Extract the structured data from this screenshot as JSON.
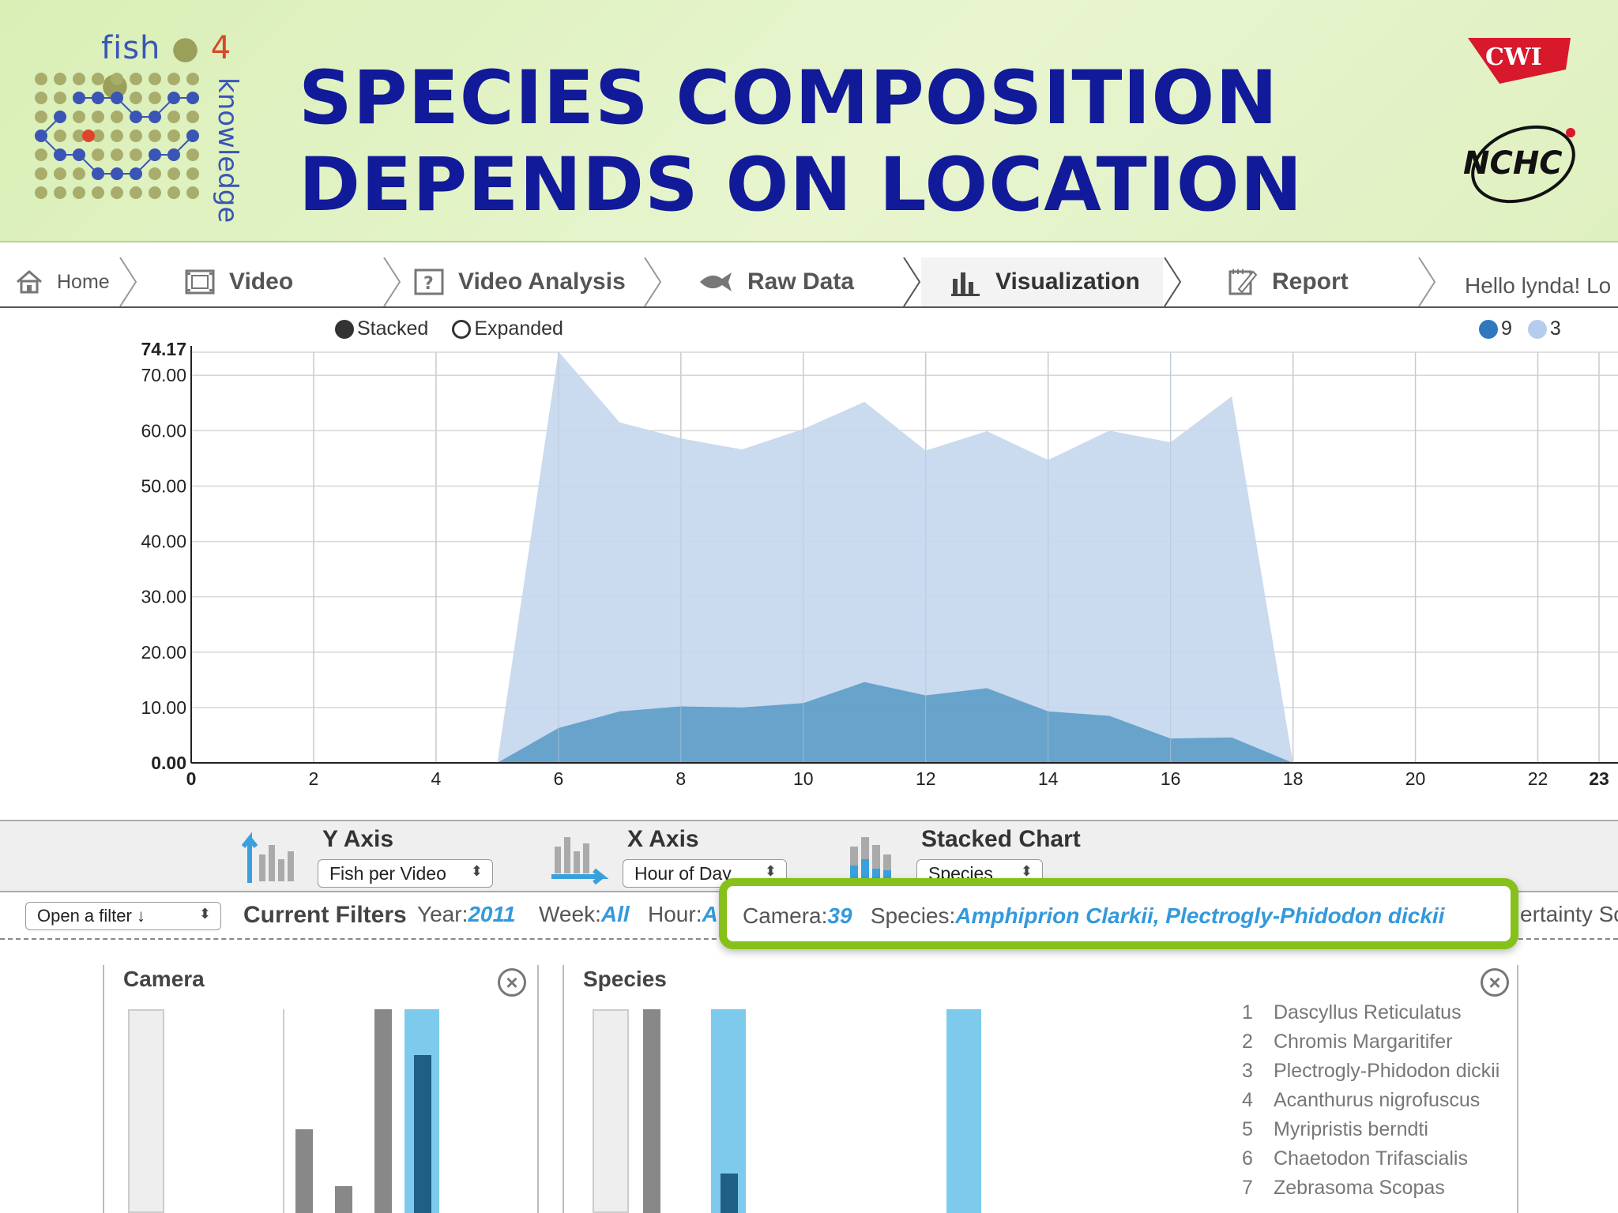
{
  "banner": {
    "logo_word_1": "fish",
    "logo_word_2": "4",
    "logo_word_3": "knowledge",
    "title_line_1": "SPECIES COMPOSITION",
    "title_line_2": "DEPENDS ON LOCATION",
    "partner_1": "CWI",
    "partner_2": "NCHC"
  },
  "nav": {
    "tabs": [
      {
        "label": "Home",
        "icon": "home-icon"
      },
      {
        "label": "Video",
        "icon": "film-icon"
      },
      {
        "label": "Video Analysis",
        "icon": "question-icon"
      },
      {
        "label": "Raw Data",
        "icon": "fish-icon"
      },
      {
        "label": "Visualization",
        "icon": "bar-chart-icon",
        "active": true
      },
      {
        "label": "Report",
        "icon": "report-icon"
      }
    ],
    "greeting": "Hello lynda!",
    "greeting_tail": "Lo"
  },
  "chart_mode": {
    "stacked_label": "Stacked",
    "expanded_label": "Expanded",
    "selected": "Stacked"
  },
  "chart_data": {
    "type": "area",
    "stacked": true,
    "x_ticks": [
      "0",
      "2",
      "4",
      "6",
      "8",
      "10",
      "12",
      "14",
      "16",
      "18",
      "20",
      "22",
      "23"
    ],
    "y_ticks": [
      "0.00",
      "10.00",
      "20.00",
      "30.00",
      "40.00",
      "50.00",
      "60.00",
      "70.00",
      "74.17"
    ],
    "xlim": [
      0,
      23
    ],
    "ylim": [
      0,
      74.17
    ],
    "grid": true,
    "legend_position": "top-right",
    "x": [
      5,
      6,
      7,
      8,
      9,
      10,
      11,
      12,
      13,
      14,
      15,
      16,
      17,
      18
    ],
    "series": [
      {
        "name": "9",
        "color": "#5b9bc8",
        "values": [
          0,
          6.3,
          9.3,
          10.2,
          10.0,
          10.8,
          14.6,
          12.2,
          13.5,
          9.3,
          8.5,
          4.4,
          4.6,
          0
        ]
      },
      {
        "name": "3",
        "color": "#c5d7ee",
        "values": [
          0,
          68.0,
          52.2,
          48.4,
          46.6,
          49.5,
          50.6,
          44.2,
          46.4,
          45.4,
          51.5,
          53.5,
          61.6,
          0
        ]
      }
    ]
  },
  "controls": {
    "y_axis_label": "Y Axis",
    "y_axis_value": "Fish per Video",
    "x_axis_label": "X Axis",
    "x_axis_value": "Hour of Day",
    "stacked_label": "Stacked Chart",
    "stacked_value": "Species"
  },
  "filters": {
    "open_filter": "Open a filter",
    "current_label": "Current Filters",
    "year_label": "Year:",
    "year_value": "2011",
    "week_label": "Week:",
    "week_value": "All",
    "hour_label": "Hour:",
    "hour_value": "A",
    "camera_label": "Camera:",
    "camera_value": "39",
    "species_label": "Species:",
    "species_value": "Amphiprion Clarkii, Plectrogly-Phidodon dickii",
    "certainty_fragment": "ertainty Sc"
  },
  "panels": {
    "camera_title": "Camera",
    "species_title": "Species",
    "species_list": [
      {
        "num": "1",
        "name": "Dascyllus Reticulatus"
      },
      {
        "num": "2",
        "name": "Chromis Margaritifer"
      },
      {
        "num": "3",
        "name": "Plectrogly-Phidodon dickii"
      },
      {
        "num": "4",
        "name": "Acanthurus nigrofuscus"
      },
      {
        "num": "5",
        "name": "Myripristis berndti"
      },
      {
        "num": "6",
        "name": "Chaetodon Trifascialis"
      },
      {
        "num": "7",
        "name": "Zebrasoma Scopas"
      }
    ]
  },
  "colors": {
    "banner_title": "#111a99",
    "series_9": "#5b9bc8",
    "series_3": "#c5d7ee",
    "filter_value": "#3399dd",
    "highlight": "#86c11a"
  }
}
